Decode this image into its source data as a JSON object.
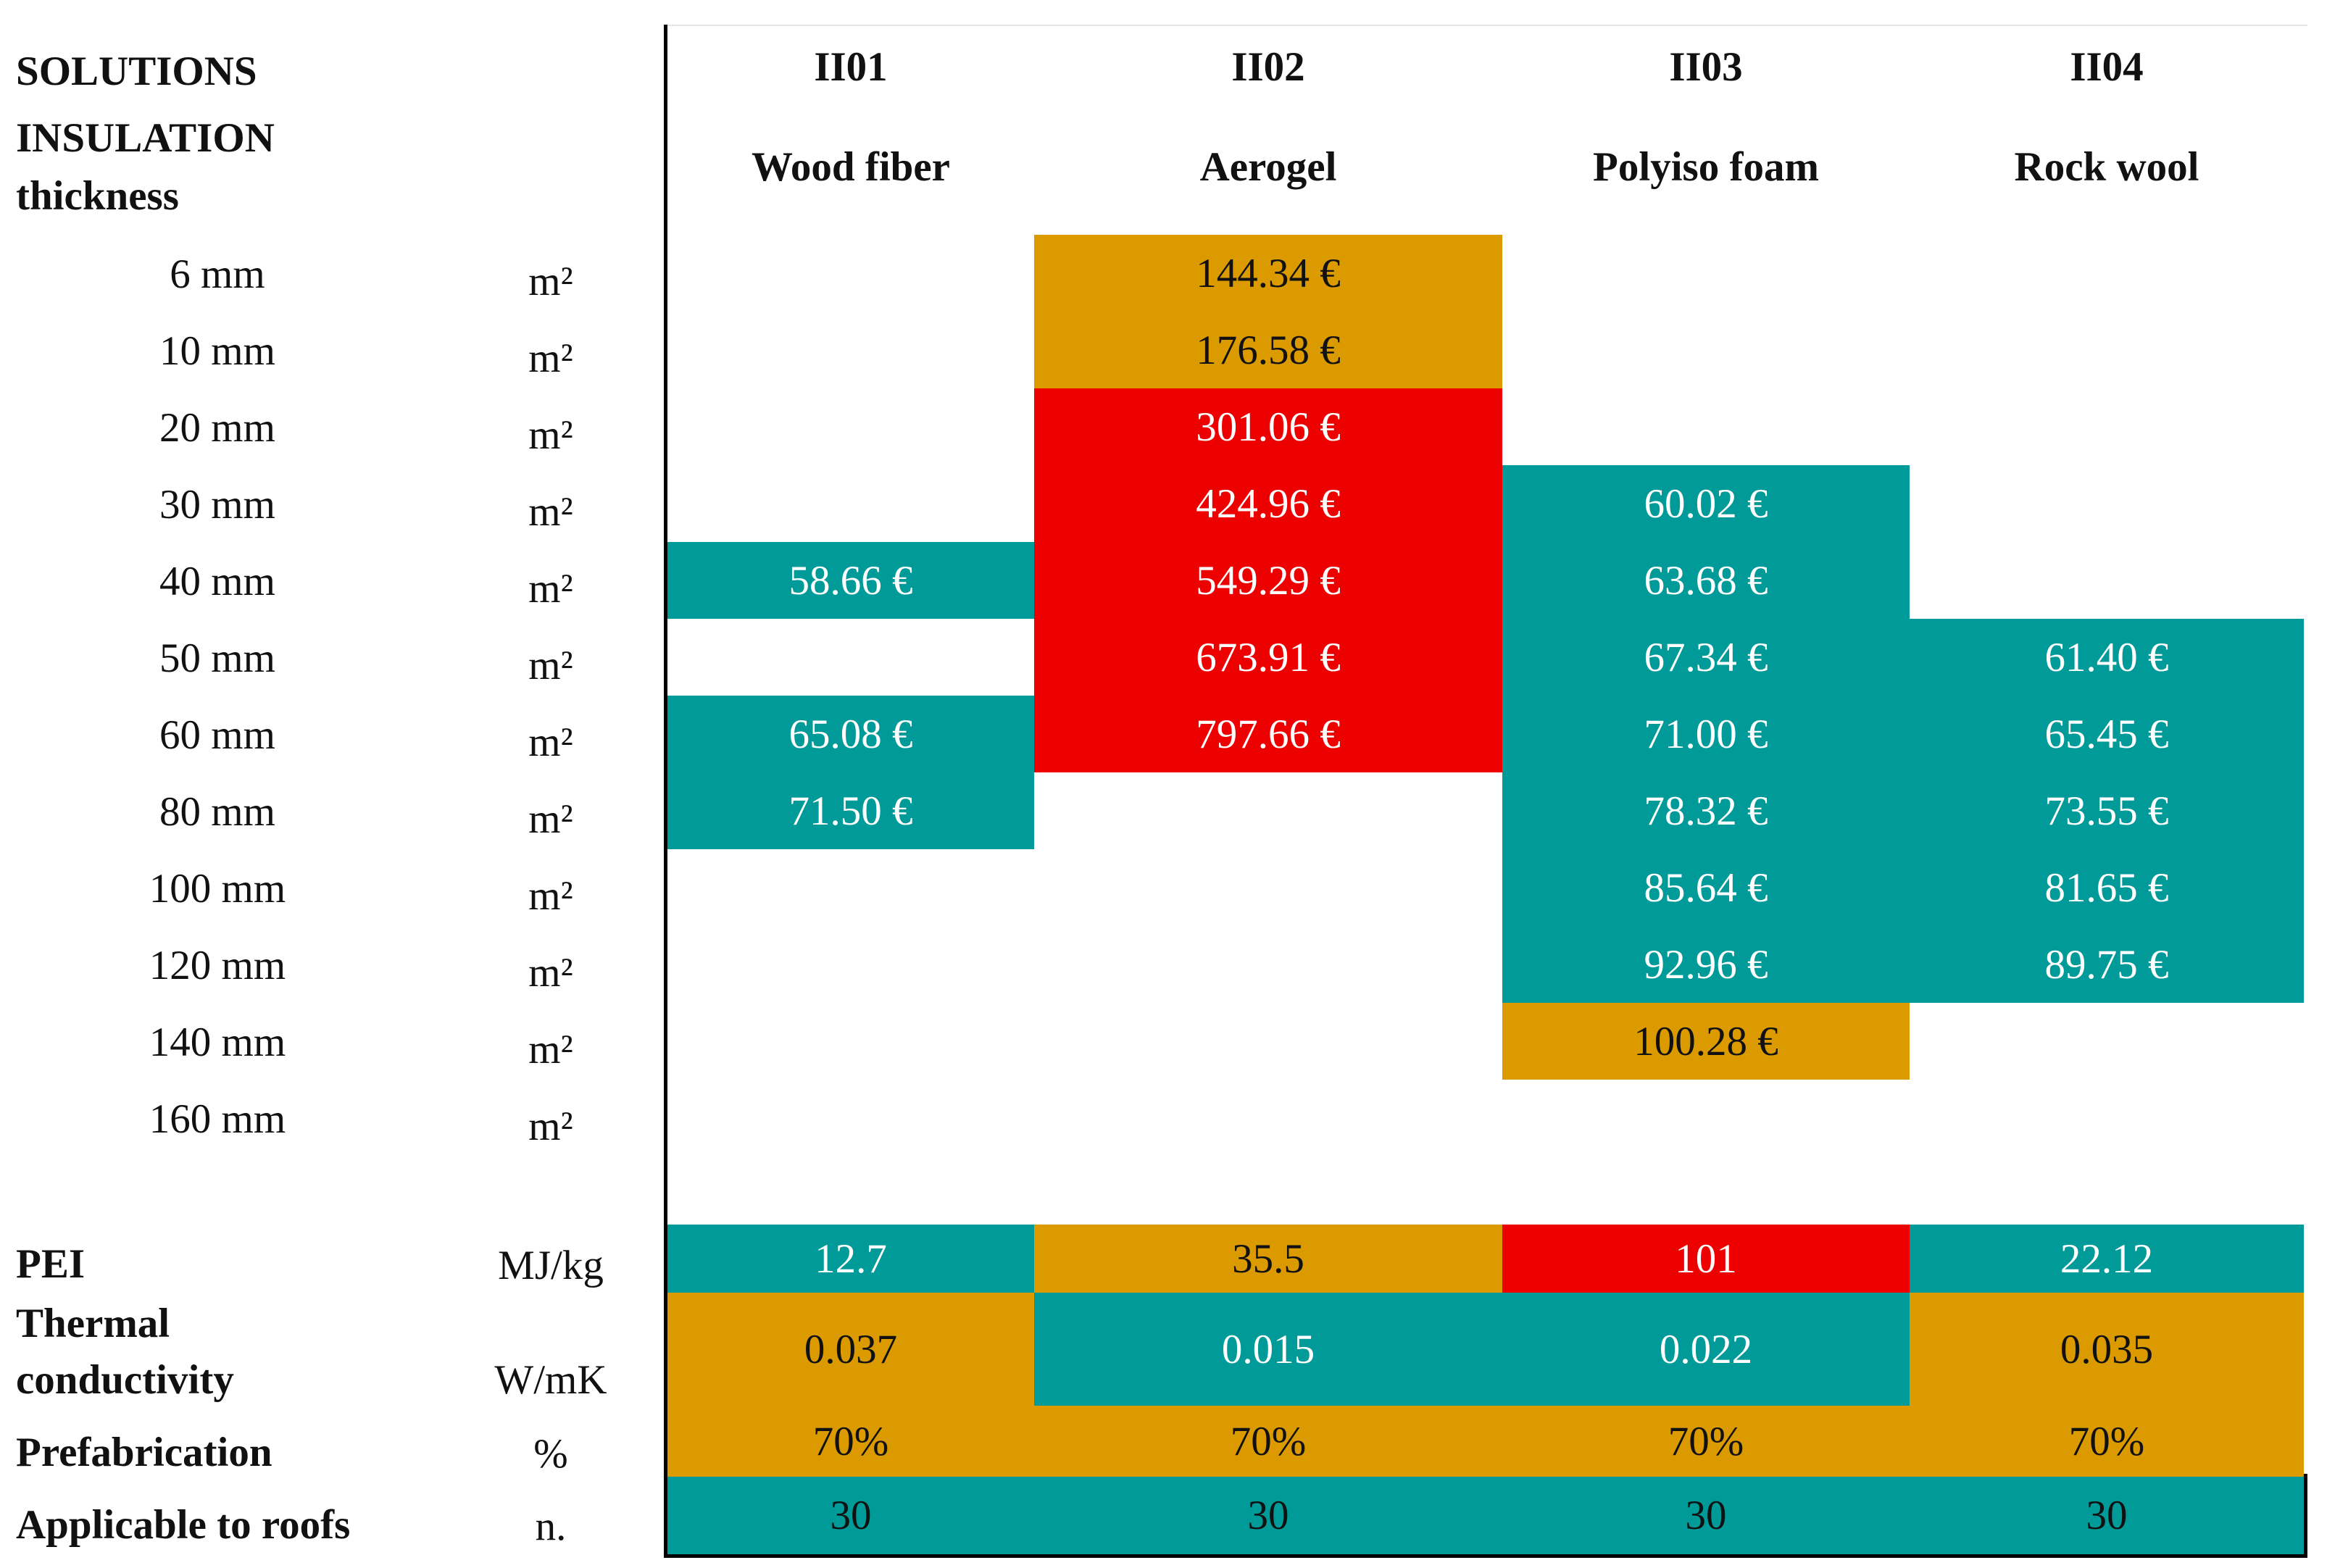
{
  "title_labels": {
    "solutions": "SOLUTIONS",
    "insulation": "INSULATION",
    "thickness": "thickness"
  },
  "columns": [
    {
      "code": "II01",
      "name": "Wood fiber"
    },
    {
      "code": "II02",
      "name": "Aerogel"
    },
    {
      "code": "II03",
      "name": "Polyiso foam"
    },
    {
      "code": "II04",
      "name": "Rock wool"
    }
  ],
  "thickness_rows": [
    {
      "label": "6 mm",
      "unit": "m²",
      "values": [
        "",
        "144.34 €",
        "",
        ""
      ]
    },
    {
      "label": "10 mm",
      "unit": "m²",
      "values": [
        "",
        "176.58 €",
        "",
        ""
      ]
    },
    {
      "label": "20 mm",
      "unit": "m²",
      "values": [
        "",
        "301.06 €",
        "",
        ""
      ]
    },
    {
      "label": "30 mm",
      "unit": "m²",
      "values": [
        "",
        "424.96 €",
        "60.02 €",
        ""
      ]
    },
    {
      "label": "40 mm",
      "unit": "m²",
      "values": [
        "58.66 €",
        "549.29 €",
        "63.68 €",
        ""
      ]
    },
    {
      "label": "50 mm",
      "unit": "m²",
      "values": [
        "",
        "673.91 €",
        "67.34 €",
        "61.40 €"
      ]
    },
    {
      "label": "60 mm",
      "unit": "m²",
      "values": [
        "65.08 €",
        "797.66 €",
        "71.00 €",
        "65.45 €"
      ]
    },
    {
      "label": "80 mm",
      "unit": "m²",
      "values": [
        "71.50 €",
        "",
        "78.32 €",
        "73.55 €"
      ]
    },
    {
      "label": "100 mm",
      "unit": "m²",
      "values": [
        "",
        "",
        "85.64 €",
        "81.65 €"
      ]
    },
    {
      "label": "120 mm",
      "unit": "m²",
      "values": [
        "",
        "",
        "92.96 €",
        "89.75 €"
      ]
    },
    {
      "label": "140 mm",
      "unit": "m²",
      "values": [
        "",
        "",
        "100.28 €",
        ""
      ]
    },
    {
      "label": "160 mm",
      "unit": "m²",
      "values": [
        "",
        "",
        "",
        ""
      ]
    }
  ],
  "property_rows": [
    {
      "label": "PEI",
      "unit": "MJ/kg",
      "values": [
        "12.7",
        "35.5",
        "101",
        "22.12"
      ]
    },
    {
      "label_line1": "Thermal",
      "label_line2": "conductivity",
      "unit": "W/mK",
      "values": [
        "0.037",
        "0.015",
        "0.022",
        "0.035"
      ]
    },
    {
      "label": "Prefabrication",
      "unit": "%",
      "values": [
        "70%",
        "70%",
        "70%",
        "70%"
      ]
    },
    {
      "label": "Applicable to roofs",
      "unit": "n.",
      "values": [
        "30",
        "30",
        "30",
        "30"
      ]
    }
  ],
  "colors": {
    "teal": "#009a98",
    "orange": "#da9a00",
    "red": "#ec0000"
  }
}
